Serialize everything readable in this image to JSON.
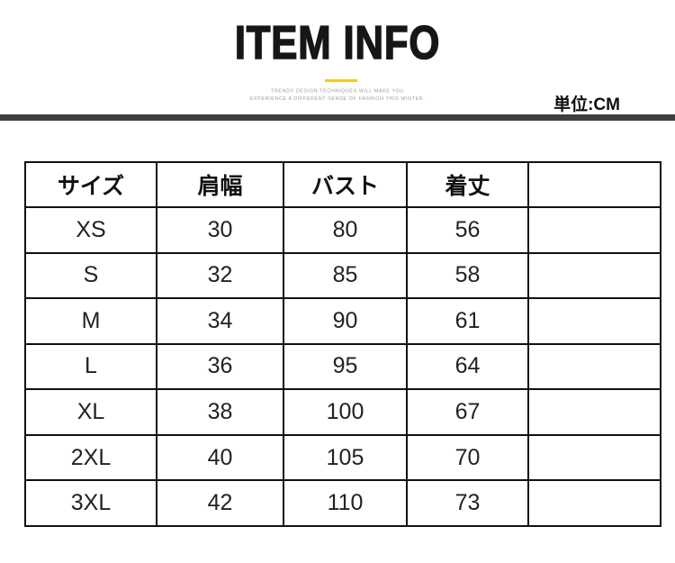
{
  "header": {
    "title": "ITEM INFO",
    "tagline_line1": "TRENDY DESIGN TECHNIQUES WILL MAKE YOU",
    "tagline_line2": "EXPERIENCE A DIFFERENT SENSE OF FASHION THIS WINTER.",
    "unit_label": "単位:CM"
  },
  "colors": {
    "accent": "#f2c928",
    "divider_bar": "#3f3f3f",
    "table_border": "#111111",
    "title_text": "#161616",
    "tagline_text": "#9b9b9b"
  },
  "chart_data": {
    "type": "table",
    "title": "ITEM INFO",
    "unit": "CM",
    "columns": [
      "サイズ",
      "肩幅",
      "バスト",
      "着丈",
      ""
    ],
    "rows": [
      [
        "XS",
        "30",
        "80",
        "56",
        ""
      ],
      [
        "S",
        "32",
        "85",
        "58",
        ""
      ],
      [
        "M",
        "34",
        "90",
        "61",
        ""
      ],
      [
        "L",
        "36",
        "95",
        "64",
        ""
      ],
      [
        "XL",
        "38",
        "100",
        "67",
        ""
      ],
      [
        "2XL",
        "40",
        "105",
        "70",
        ""
      ],
      [
        "3XL",
        "42",
        "110",
        "73",
        ""
      ]
    ]
  }
}
